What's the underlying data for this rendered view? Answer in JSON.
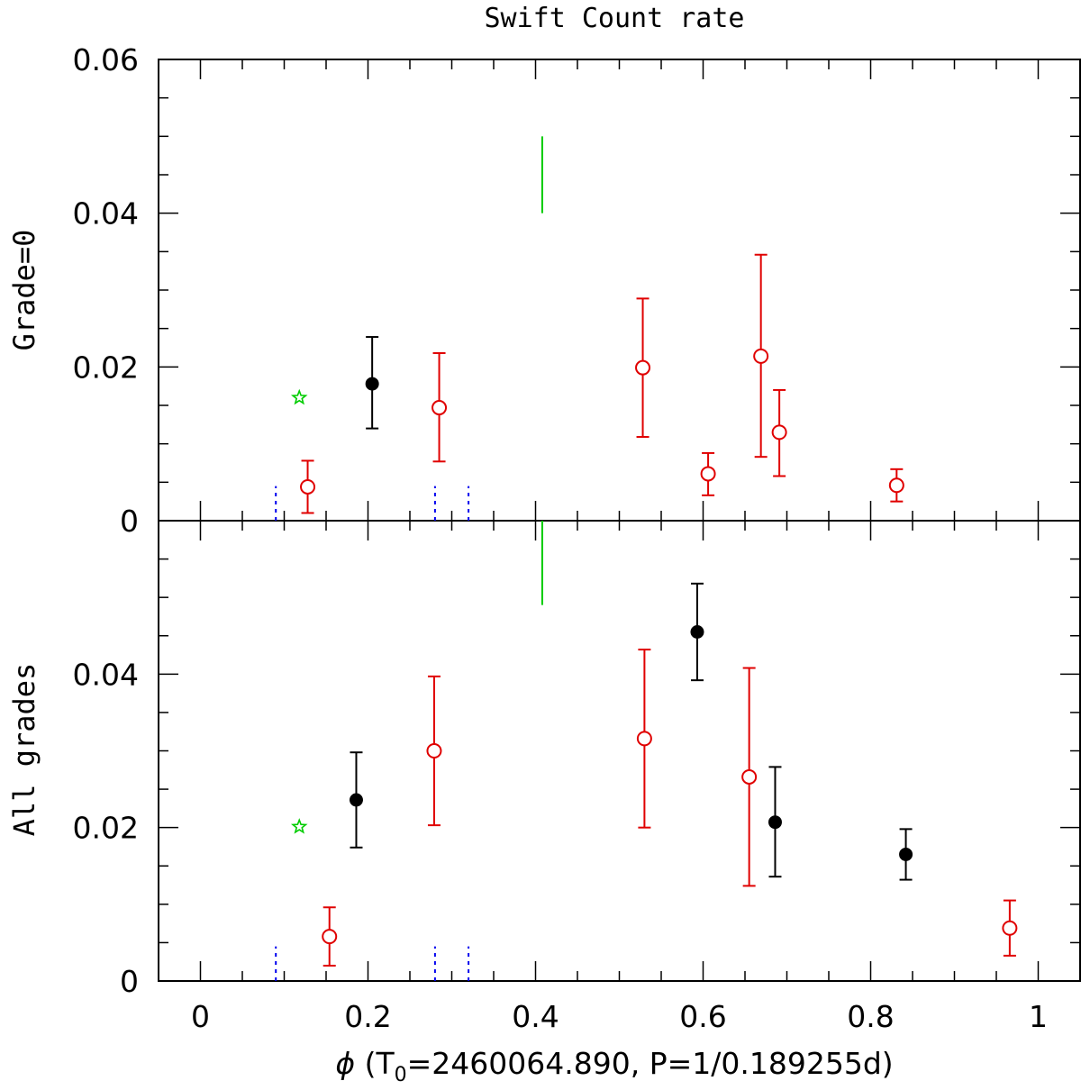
{
  "colors": {
    "black": "#000000",
    "red": "#e00000",
    "green": "#00cc00",
    "blue": "#0000ee"
  },
  "chart_data": {
    "type": "scatter",
    "title": "Swift Count rate",
    "xlabel_prefix": "ϕ",
    "xlabel_p1": " (T",
    "xlabel_sub": "0",
    "xlabel_p2": "=2460064.890, P=1/0.189255d)",
    "xlim": [
      -0.05,
      1.05
    ],
    "x_ticks": [
      "0",
      "0.2",
      "0.4",
      "0.6",
      "0.8",
      "1"
    ],
    "x_tick_values": [
      0,
      0.2,
      0.4,
      0.6,
      0.8,
      1.0
    ],
    "panels": [
      {
        "id": "top",
        "ylabel": "Grade=0",
        "ylim": [
          0,
          0.06
        ],
        "y_ticks": [
          "0",
          "0.02",
          "0.04",
          "0.06"
        ],
        "y_tick_values": [
          0,
          0.02,
          0.04,
          0.06
        ],
        "black_points": [
          {
            "x": 0.205,
            "y": 0.0178,
            "lo": 0.012,
            "hi": 0.0239
          }
        ],
        "red_points": [
          {
            "x": 0.128,
            "y": 0.0044,
            "lo": 0.001,
            "hi": 0.0078
          },
          {
            "x": 0.285,
            "y": 0.0147,
            "lo": 0.0077,
            "hi": 0.0218
          },
          {
            "x": 0.528,
            "y": 0.0199,
            "lo": 0.0109,
            "hi": 0.0289
          },
          {
            "x": 0.606,
            "y": 0.0061,
            "lo": 0.0033,
            "hi": 0.0088
          },
          {
            "x": 0.669,
            "y": 0.0214,
            "lo": 0.0083,
            "hi": 0.0346
          },
          {
            "x": 0.691,
            "y": 0.0115,
            "lo": 0.0058,
            "hi": 0.017
          },
          {
            "x": 0.831,
            "y": 0.0046,
            "lo": 0.0025,
            "hi": 0.0067
          }
        ],
        "green_star": {
          "x": 0.118,
          "y": 0.016
        },
        "green_line": {
          "x": 0.408,
          "y1": 0.04,
          "y2": 0.05
        },
        "blue_markers": {
          "x": [
            0.09,
            0.28,
            0.32
          ],
          "y1": 0,
          "y2": 0.0045
        }
      },
      {
        "id": "bottom",
        "ylabel": "All grades",
        "ylim": [
          0,
          0.06
        ],
        "y_ticks": [
          "0",
          "0.02",
          "0.04",
          "0.06"
        ],
        "y_tick_values": [
          0,
          0.02,
          0.04,
          0.06
        ],
        "black_points": [
          {
            "x": 0.186,
            "y": 0.0236,
            "lo": 0.0174,
            "hi": 0.0298
          },
          {
            "x": 0.593,
            "y": 0.0455,
            "lo": 0.0392,
            "hi": 0.0518
          },
          {
            "x": 0.686,
            "y": 0.0207,
            "lo": 0.0136,
            "hi": 0.0279
          },
          {
            "x": 0.842,
            "y": 0.0165,
            "lo": 0.0132,
            "hi": 0.0198
          }
        ],
        "red_points": [
          {
            "x": 0.154,
            "y": 0.0058,
            "lo": 0.002,
            "hi": 0.0096
          },
          {
            "x": 0.279,
            "y": 0.03,
            "lo": 0.0203,
            "hi": 0.0397
          },
          {
            "x": 0.53,
            "y": 0.0316,
            "lo": 0.02,
            "hi": 0.0432
          },
          {
            "x": 0.655,
            "y": 0.0266,
            "lo": 0.0124,
            "hi": 0.0408
          },
          {
            "x": 0.966,
            "y": 0.0069,
            "lo": 0.0033,
            "hi": 0.0105
          }
        ],
        "green_star": {
          "x": 0.118,
          "y": 0.0201
        },
        "green_line": {
          "x": 0.408,
          "y1": 0.049,
          "y2": 0.06
        },
        "blue_markers": {
          "x": [
            0.09,
            0.28,
            0.32
          ],
          "y1": 0,
          "y2": 0.0045
        }
      }
    ]
  }
}
